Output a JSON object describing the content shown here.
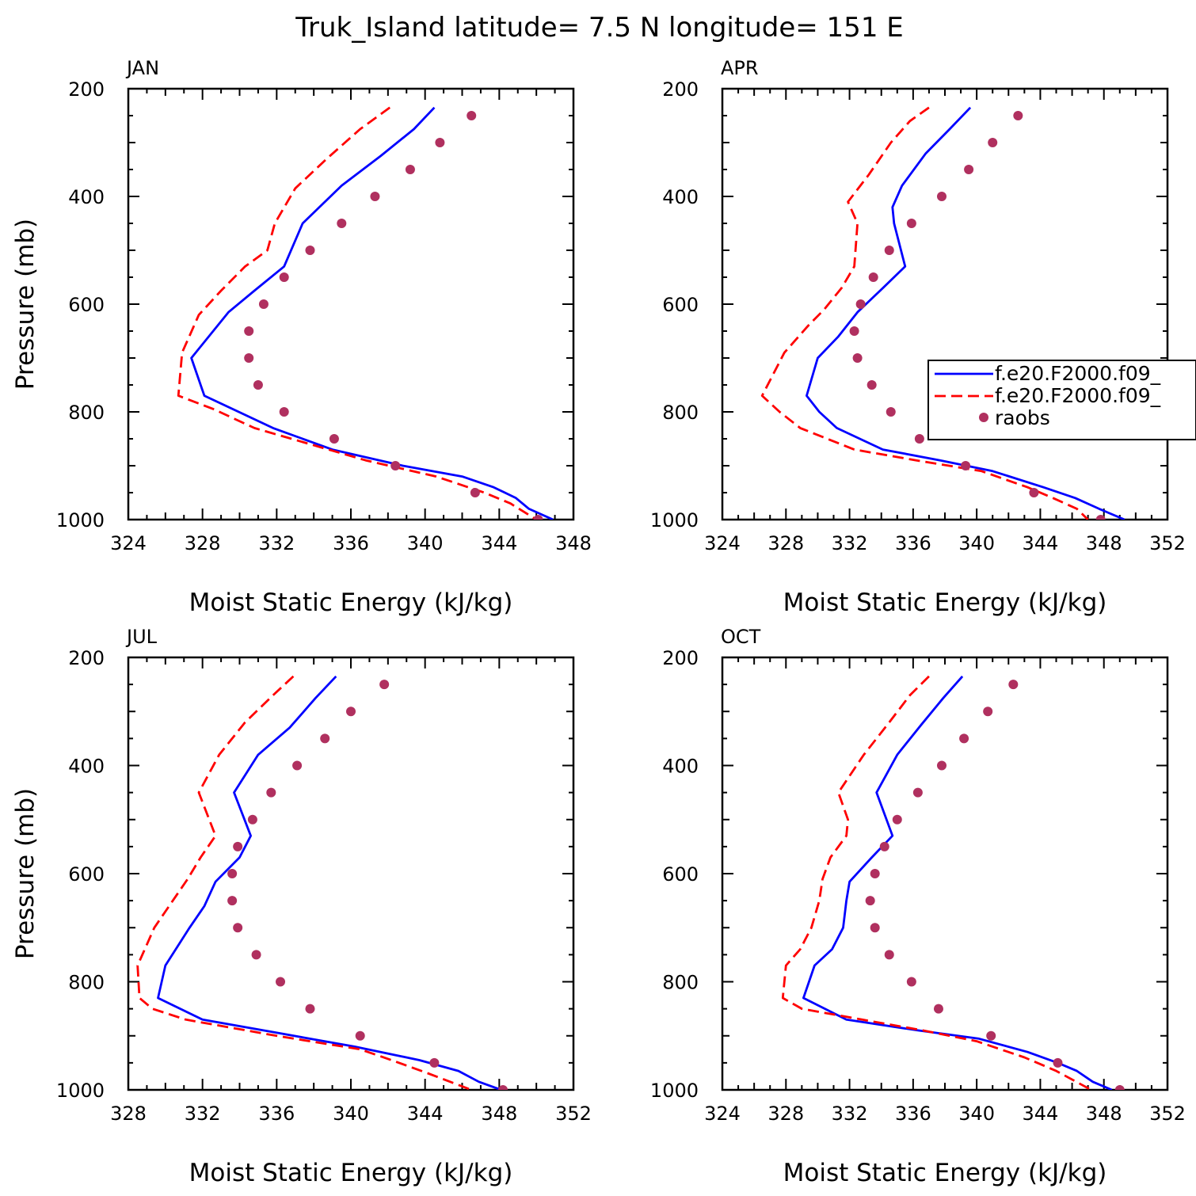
{
  "title": "Truk_Island  latitude= 7.5 N longitude= 151 E",
  "colors": {
    "model1": "#0000ff",
    "model2": "#ff0000",
    "obs": "#b0305f"
  },
  "legend": {
    "placement": "right",
    "entries": [
      "f.e20.F2000.f09_",
      "f.e20.F2000.f09_",
      "raobs"
    ]
  },
  "chart_data": [
    {
      "type": "line",
      "title": "JAN",
      "xlabel": "Moist Static Energy (kJ/kg)",
      "ylabel": "Pressure (mb)",
      "xlim": [
        324,
        348
      ],
      "ylim": [
        1000,
        200
      ],
      "xticks": [
        "324",
        "328",
        "332",
        "336",
        "340",
        "344",
        "348"
      ],
      "yticks": [
        "200",
        "400",
        "600",
        "800",
        "1000"
      ],
      "series": [
        {
          "name": "f.e20.F2000.f09_",
          "style": "solid",
          "color": "#0000ff",
          "x": [
            340.5,
            339.4,
            337.6,
            335.5,
            333.4,
            332.4,
            330.8,
            329.4,
            327.4,
            328.1,
            331.8,
            335.0,
            338.8,
            342.0,
            343.7,
            344.9,
            345.6,
            346.9
          ],
          "y": [
            235,
            275,
            325,
            380,
            450,
            530,
            575,
            615,
            700,
            770,
            830,
            870,
            900,
            920,
            940,
            960,
            980,
            1000
          ]
        },
        {
          "name": "f.e20.F2000.f09_",
          "style": "dashed",
          "color": "#ff0000",
          "x": [
            338.1,
            336.5,
            334.7,
            333.0,
            331.9,
            331.5,
            330.3,
            329.0,
            327.8,
            326.9,
            326.7,
            328.6,
            330.8,
            333.8,
            336.8,
            340.6,
            343.2,
            344.6,
            346.0
          ],
          "y": [
            235,
            275,
            330,
            385,
            450,
            500,
            530,
            575,
            620,
            690,
            770,
            795,
            830,
            860,
            890,
            920,
            950,
            970,
            1000
          ]
        },
        {
          "name": "raobs",
          "style": "markers",
          "color": "#b0305f",
          "x": [
            342.5,
            340.8,
            339.2,
            337.3,
            335.5,
            333.8,
            332.4,
            331.3,
            330.5,
            330.5,
            331.0,
            332.4,
            335.1,
            338.4,
            342.7,
            346.1
          ],
          "y": [
            250,
            300,
            350,
            400,
            450,
            500,
            550,
            600,
            650,
            700,
            750,
            800,
            850,
            900,
            950,
            1000
          ]
        }
      ]
    },
    {
      "type": "line",
      "title": "APR",
      "xlabel": "Moist Static Energy (kJ/kg)",
      "ylabel": "",
      "xlim": [
        324,
        352
      ],
      "ylim": [
        1000,
        200
      ],
      "xticks": [
        "324",
        "328",
        "332",
        "336",
        "340",
        "344",
        "348",
        "352"
      ],
      "yticks": [
        "200",
        "400",
        "600",
        "800",
        "1000"
      ],
      "series": [
        {
          "name": "f.e20.F2000.f09_",
          "style": "solid",
          "color": "#0000ff",
          "x": [
            339.6,
            338.3,
            336.8,
            335.3,
            334.7,
            334.8,
            335.5,
            334.1,
            332.5,
            331.3,
            330.0,
            329.3,
            330.1,
            331.2,
            334.1,
            337.7,
            341.0,
            344.2,
            346.2,
            347.7,
            349.3
          ],
          "y": [
            235,
            275,
            320,
            380,
            420,
            450,
            530,
            570,
            615,
            660,
            700,
            770,
            800,
            830,
            870,
            890,
            910,
            940,
            960,
            980,
            1000
          ]
        },
        {
          "name": "f.e20.F2000.f09_",
          "style": "dashed",
          "color": "#ff0000",
          "x": [
            337.0,
            335.8,
            334.6,
            333.2,
            331.9,
            332.5,
            332.3,
            331.5,
            330.4,
            329.4,
            327.9,
            326.5,
            327.6,
            328.9,
            332.3,
            336.2,
            340.3,
            343.2,
            344.8,
            346.3,
            347.0
          ],
          "y": [
            235,
            260,
            300,
            360,
            410,
            450,
            530,
            570,
            610,
            640,
            690,
            770,
            800,
            830,
            870,
            890,
            910,
            940,
            960,
            980,
            1000
          ]
        },
        {
          "name": "raobs",
          "style": "markers",
          "color": "#b0305f",
          "x": [
            342.6,
            341.0,
            339.5,
            337.8,
            335.9,
            334.5,
            333.5,
            332.7,
            332.3,
            332.5,
            333.4,
            334.6,
            336.4,
            339.3,
            343.6,
            347.8
          ],
          "y": [
            250,
            300,
            350,
            400,
            450,
            500,
            550,
            600,
            650,
            700,
            750,
            800,
            850,
            900,
            950,
            1000
          ]
        }
      ]
    },
    {
      "type": "line",
      "title": "JUL",
      "xlabel": "Moist Static Energy (kJ/kg)",
      "ylabel": "Pressure (mb)",
      "xlim": [
        328,
        352
      ],
      "ylim": [
        1000,
        200
      ],
      "xticks": [
        "328",
        "332",
        "336",
        "340",
        "344",
        "348",
        "352"
      ],
      "yticks": [
        "200",
        "400",
        "600",
        "800",
        "1000"
      ],
      "series": [
        {
          "name": "f.e20.F2000.f09_",
          "style": "solid",
          "color": "#0000ff",
          "x": [
            339.2,
            338.1,
            336.7,
            335.0,
            333.7,
            334.6,
            334.0,
            332.7,
            332.1,
            331.3,
            330.0,
            329.6,
            332.0,
            336.1,
            340.2,
            343.7,
            345.8,
            346.9,
            348.1
          ],
          "y": [
            235,
            275,
            330,
            380,
            450,
            530,
            570,
            615,
            660,
            700,
            770,
            830,
            870,
            895,
            920,
            945,
            965,
            985,
            1000
          ]
        },
        {
          "name": "f.e20.F2000.f09_",
          "style": "dashed",
          "color": "#ff0000",
          "x": [
            336.9,
            335.8,
            334.3,
            332.9,
            331.8,
            332.7,
            331.9,
            331.2,
            330.4,
            329.4,
            328.5,
            328.6,
            329.3,
            331.1,
            336.0,
            340.5,
            342.2,
            344.2,
            346.5
          ],
          "y": [
            235,
            270,
            320,
            380,
            450,
            530,
            570,
            610,
            650,
            700,
            770,
            830,
            850,
            870,
            900,
            925,
            945,
            970,
            1000
          ]
        },
        {
          "name": "raobs",
          "style": "markers",
          "color": "#b0305f",
          "x": [
            341.8,
            340.0,
            338.6,
            337.1,
            335.7,
            334.7,
            333.9,
            333.6,
            333.6,
            333.9,
            334.9,
            336.2,
            337.8,
            340.5,
            344.5,
            348.2
          ],
          "y": [
            250,
            300,
            350,
            400,
            450,
            500,
            550,
            600,
            650,
            700,
            750,
            800,
            850,
            900,
            950,
            1000
          ]
        }
      ]
    },
    {
      "type": "line",
      "title": "OCT",
      "xlabel": "Moist Static Energy (kJ/kg)",
      "ylabel": "",
      "xlim": [
        324,
        352
      ],
      "ylim": [
        1000,
        200
      ],
      "xticks": [
        "324",
        "328",
        "332",
        "336",
        "340",
        "344",
        "348",
        "352"
      ],
      "yticks": [
        "200",
        "400",
        "600",
        "800",
        "1000"
      ],
      "series": [
        {
          "name": "f.e20.F2000.f09_",
          "style": "solid",
          "color": "#0000ff",
          "x": [
            339.1,
            337.9,
            336.5,
            335.0,
            333.7,
            334.7,
            333.4,
            332.0,
            331.8,
            331.6,
            330.9,
            329.8,
            329.1,
            331.8,
            336.3,
            340.1,
            343.2,
            345.1,
            346.3,
            347.3,
            348.5
          ],
          "y": [
            235,
            275,
            325,
            380,
            450,
            530,
            570,
            615,
            650,
            700,
            740,
            770,
            830,
            870,
            890,
            905,
            930,
            950,
            965,
            985,
            1000
          ]
        },
        {
          "name": "f.e20.F2000.f09_",
          "style": "dashed",
          "color": "#ff0000",
          "x": [
            337.0,
            335.8,
            334.5,
            332.9,
            331.3,
            331.9,
            331.8,
            330.8,
            330.3,
            330.1,
            329.6,
            328.9,
            328.0,
            327.8,
            329.0,
            332.8,
            336.6,
            340.0,
            343.0,
            345.0,
            347.2
          ],
          "y": [
            235,
            270,
            320,
            380,
            450,
            500,
            530,
            570,
            610,
            650,
            700,
            740,
            770,
            830,
            850,
            870,
            890,
            910,
            940,
            965,
            1000
          ]
        },
        {
          "name": "raobs",
          "style": "markers",
          "color": "#b0305f",
          "x": [
            342.3,
            340.7,
            339.2,
            337.8,
            336.3,
            335.0,
            334.2,
            333.6,
            333.3,
            333.6,
            334.5,
            335.9,
            337.6,
            340.9,
            345.1,
            349.0
          ],
          "y": [
            250,
            300,
            350,
            400,
            450,
            500,
            550,
            600,
            650,
            700,
            750,
            800,
            850,
            900,
            950,
            1000
          ]
        }
      ]
    }
  ]
}
